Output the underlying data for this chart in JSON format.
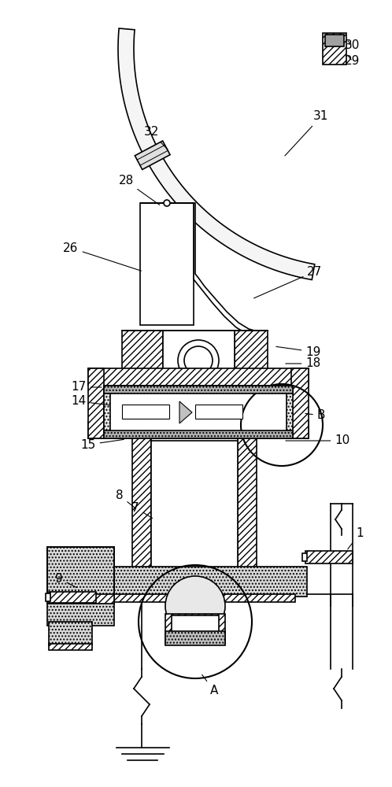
{
  "bg_color": "#ffffff",
  "lc": "#000000",
  "lw": 1.2,
  "figsize": [
    4.98,
    10.0
  ],
  "dpi": 100,
  "annotations": [
    [
      "1",
      457,
      678,
      440,
      700
    ],
    [
      "7",
      172,
      645,
      196,
      660
    ],
    [
      "8",
      152,
      630,
      175,
      648
    ],
    [
      "9",
      75,
      735,
      100,
      748
    ],
    [
      "10",
      435,
      560,
      360,
      560
    ],
    [
      "14",
      100,
      510,
      142,
      515
    ],
    [
      "15",
      112,
      565,
      160,
      558
    ],
    [
      "17",
      100,
      492,
      132,
      492
    ],
    [
      "18",
      398,
      462,
      360,
      462
    ],
    [
      "19",
      398,
      447,
      348,
      440
    ],
    [
      "26",
      90,
      315,
      182,
      345
    ],
    [
      "27",
      400,
      345,
      320,
      380
    ],
    [
      "28",
      160,
      230,
      205,
      262
    ],
    [
      "29",
      448,
      78,
      440,
      68
    ],
    [
      "30",
      448,
      58,
      440,
      50
    ],
    [
      "31",
      408,
      148,
      360,
      200
    ],
    [
      "32",
      192,
      168,
      215,
      192
    ],
    [
      "A",
      272,
      878,
      255,
      855
    ],
    [
      "B",
      408,
      528,
      385,
      525
    ]
  ]
}
